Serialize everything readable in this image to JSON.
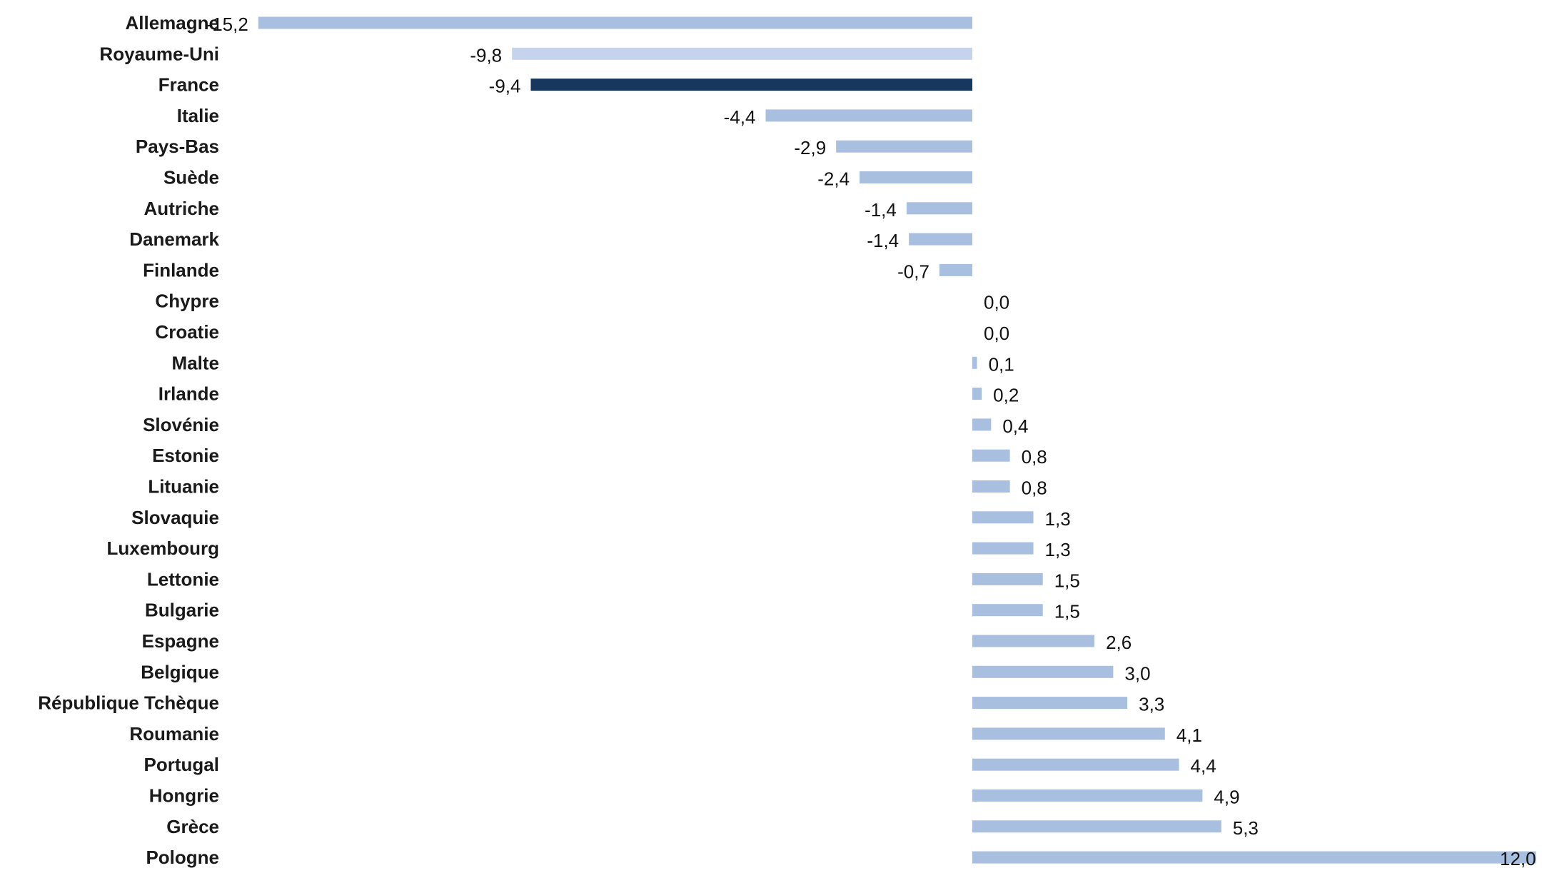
{
  "chart_data": {
    "type": "bar",
    "orientation": "horizontal",
    "title": "",
    "xlabel": "",
    "ylabel": "",
    "grid": false,
    "legend": "none",
    "xlim": [
      -15.2,
      12.0
    ],
    "categories": [
      "Allemagne",
      "Royaume-Uni",
      "France",
      "Italie",
      "Pays-Bas",
      "Suède",
      "Autriche",
      "Danemark",
      "Finlande",
      "Chypre",
      "Croatie",
      "Malte",
      "Irlande",
      "Slovénie",
      "Estonie",
      "Lituanie",
      "Slovaquie",
      "Luxembourg",
      "Lettonie",
      "Bulgarie",
      "Espagne",
      "Belgique",
      "République Tchèque",
      "Roumanie",
      "Portugal",
      "Hongrie",
      "Grèce",
      "Pologne"
    ],
    "values": [
      -15.2,
      -9.8,
      -9.4,
      -4.4,
      -2.9,
      -2.4,
      -1.4,
      -1.35,
      -0.7,
      0.0,
      0.0,
      0.1,
      0.2,
      0.4,
      0.8,
      0.8,
      1.3,
      1.3,
      1.5,
      1.5,
      2.6,
      3.0,
      3.3,
      4.1,
      4.4,
      4.9,
      5.3,
      12.0
    ],
    "value_labels": [
      "-15,2",
      "-9,8",
      "-9,4",
      "-4,4",
      "-2,9",
      "-2,4",
      "-1,4",
      "-1,4",
      "-0,7",
      "0,0",
      "0,0",
      "0,1",
      "0,2",
      "0,4",
      "0,8",
      "0,8",
      "1,3",
      "1,3",
      "1,5",
      "1,5",
      "2,6",
      "3,0",
      "3,3",
      "4,1",
      "4,4",
      "4,9",
      "5,3",
      "12,0"
    ],
    "colors": {
      "default": "#a8bfe0",
      "Royaume-Uni": "#c5d4ec",
      "France": "#17375e"
    }
  }
}
